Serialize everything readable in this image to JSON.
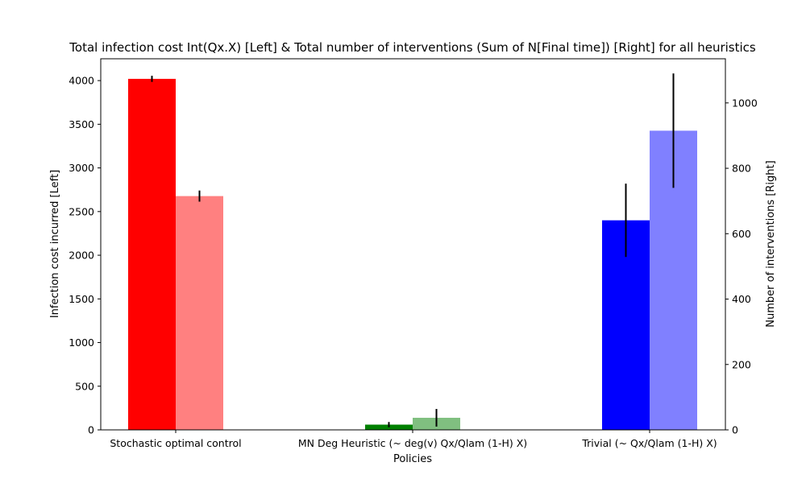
{
  "chart_data": {
    "type": "bar",
    "title": "Total infection cost Int(Qx.X) [Left] & Total number of interventions (Sum of N[Final time]) [Right] for all heuristics",
    "xlabel": "Policies",
    "ylabel_left": "Infection cost incurred [Left]",
    "ylabel_right": "Number of interventions [Right]",
    "categories": [
      "Stochastic optimal control",
      "MN Deg Heuristic (~ deg(v) Qx/Qlam (1-H) X)",
      "Trivial (~ Qx/Qlam (1-H) X)"
    ],
    "ylim_left": [
      0,
      4250
    ],
    "ylim_right": [
      0,
      1135
    ],
    "yticks_left": [
      0,
      500,
      1000,
      1500,
      2000,
      2500,
      3000,
      3500,
      4000
    ],
    "yticks_right": [
      0,
      200,
      400,
      600,
      800,
      1000
    ],
    "grid": false,
    "series": [
      {
        "axis": "left",
        "values": [
          4020,
          60,
          2400
        ],
        "errors": [
          35,
          30,
          420
        ],
        "colors": [
          "#ff0000",
          "#008000",
          "#0000ff"
        ]
      },
      {
        "axis": "right",
        "values": [
          715,
          37,
          915
        ],
        "errors": [
          17,
          27,
          175
        ],
        "colors": [
          "#ff8080",
          "#80bf80",
          "#8080ff"
        ]
      }
    ]
  }
}
